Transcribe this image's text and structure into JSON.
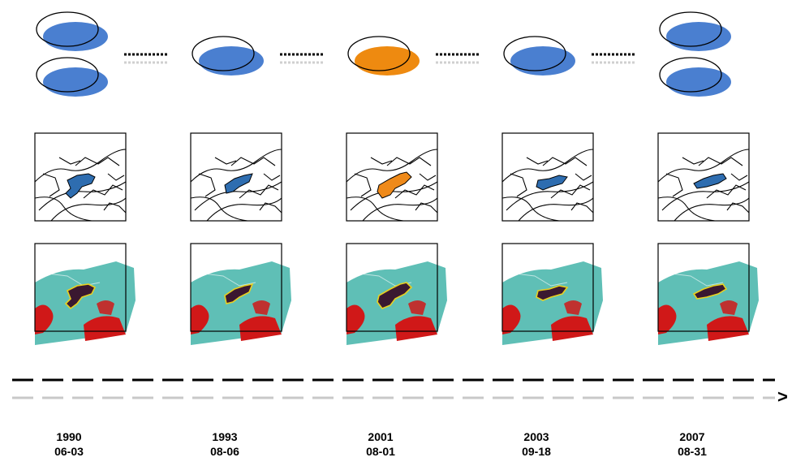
{
  "colors": {
    "ellipse_blue": "#4a7fd0",
    "ellipse_orange": "#ee8a10",
    "region_blue": "#2e6db0",
    "region_orange": "#ef8a1a",
    "imagery_cyan": "#5fbfb6",
    "imagery_red": "#d01818",
    "imagery_dark": "#3a1830",
    "outline_yellow": "#e8d020",
    "timeline_black": "#000000",
    "timeline_gray": "#c8c8c8"
  },
  "snapshots": [
    {
      "year": "1990",
      "date": "06-03",
      "highlight": "blue",
      "ellipse_count": 2
    },
    {
      "year": "1993",
      "date": "08-06",
      "highlight": "blue",
      "ellipse_count": 1
    },
    {
      "year": "2001",
      "date": "08-01",
      "highlight": "orange",
      "ellipse_count": 1
    },
    {
      "year": "2003",
      "date": "09-18",
      "highlight": "blue",
      "ellipse_count": 1
    },
    {
      "year": "2007",
      "date": "08-31",
      "highlight": "blue",
      "ellipse_count": 2
    }
  ],
  "timeline_arrow_glyph": ">"
}
